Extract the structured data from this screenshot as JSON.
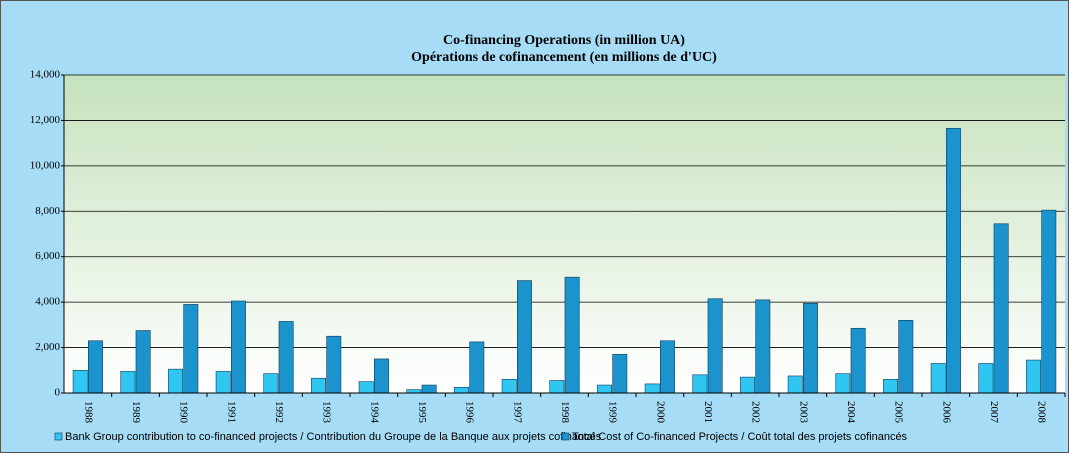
{
  "chart_data": {
    "type": "bar",
    "title": "Co-financing Operations (in million UA)",
    "subtitle": "Opérations de cofinancement (en millions de d'UC)",
    "categories": [
      "1988",
      "1989",
      "1990",
      "1991",
      "1992",
      "1993",
      "1994",
      "1995",
      "1996",
      "1997",
      "1998",
      "1999",
      "2000",
      "2001",
      "2002",
      "2003",
      "2004",
      "2005",
      "2006",
      "2007",
      "2008"
    ],
    "series": [
      {
        "name": "Bank Group contribution to co-financed projects / Contribution du Groupe de la Banque aux projets cofinancés",
        "color": "#2fc6f2",
        "values": [
          1000,
          950,
          1050,
          950,
          850,
          650,
          500,
          150,
          250,
          600,
          550,
          350,
          400,
          800,
          700,
          750,
          850,
          600,
          1300,
          1300,
          1450
        ]
      },
      {
        "name": "Total Cost of Co-financed Projects / Coût total des projets cofinancés",
        "color": "#1b93cc",
        "values": [
          2300,
          2750,
          3900,
          4050,
          3150,
          2500,
          1500,
          350,
          2250,
          4950,
          5100,
          1700,
          2300,
          4150,
          4100,
          3950,
          2850,
          3200,
          11650,
          7450,
          8050
        ]
      }
    ],
    "ylim": [
      0,
      14000
    ],
    "yticks": [
      0,
      {
        "value": 2000,
        "label": "2,000"
      },
      {
        "value": 4000,
        "label": "4,000"
      },
      {
        "value": 6000,
        "label": "6,000"
      },
      {
        "value": 8000,
        "label": "8,000"
      },
      {
        "value": 10000,
        "label": "10,000"
      },
      {
        "value": 12000,
        "label": "12,000"
      },
      {
        "value": 14000,
        "label": "14,000"
      }
    ],
    "grid": true
  }
}
